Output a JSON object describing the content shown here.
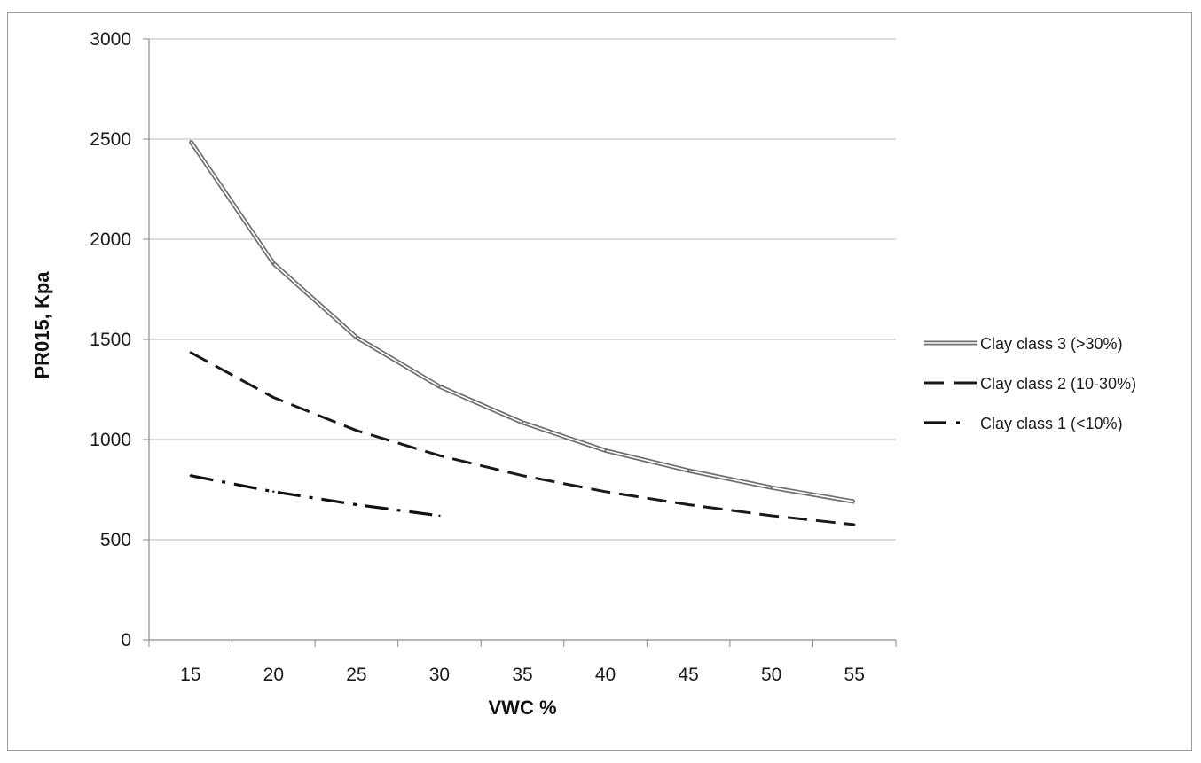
{
  "chart_data": {
    "type": "line",
    "title": "",
    "xlabel": "VWC %",
    "ylabel": "PR015, Kpa",
    "x": [
      15,
      20,
      25,
      30,
      35,
      40,
      45,
      50,
      55
    ],
    "x_tick_labels": [
      "15",
      "20",
      "25",
      "30",
      "35",
      "40",
      "45",
      "50",
      "55"
    ],
    "y_tick_labels": [
      "0",
      "500",
      "1000",
      "1500",
      "2000",
      "2500",
      "3000"
    ],
    "ylim": [
      0,
      3000
    ],
    "grid": "horizontal",
    "legend_position": "right",
    "series": [
      {
        "name": "Clay class 3 (>30%)",
        "style": "double-solid",
        "color": "#6e6e6e",
        "x": [
          15,
          20,
          25,
          30,
          35,
          40,
          45,
          50,
          55
        ],
        "values": [
          2490,
          1880,
          1510,
          1265,
          1085,
          945,
          845,
          760,
          690
        ]
      },
      {
        "name": "Clay class 2 (10-30%)",
        "style": "dashed",
        "color": "#1a1a1a",
        "x": [
          15,
          20,
          25,
          30,
          35,
          40,
          45,
          50,
          55
        ],
        "values": [
          1435,
          1210,
          1045,
          920,
          820,
          740,
          675,
          620,
          575
        ]
      },
      {
        "name": "Clay class 1 (<10%)",
        "style": "dash-dot",
        "color": "#111111",
        "x": [
          15,
          20,
          25,
          30
        ],
        "values": [
          820,
          740,
          675,
          620
        ]
      }
    ]
  }
}
